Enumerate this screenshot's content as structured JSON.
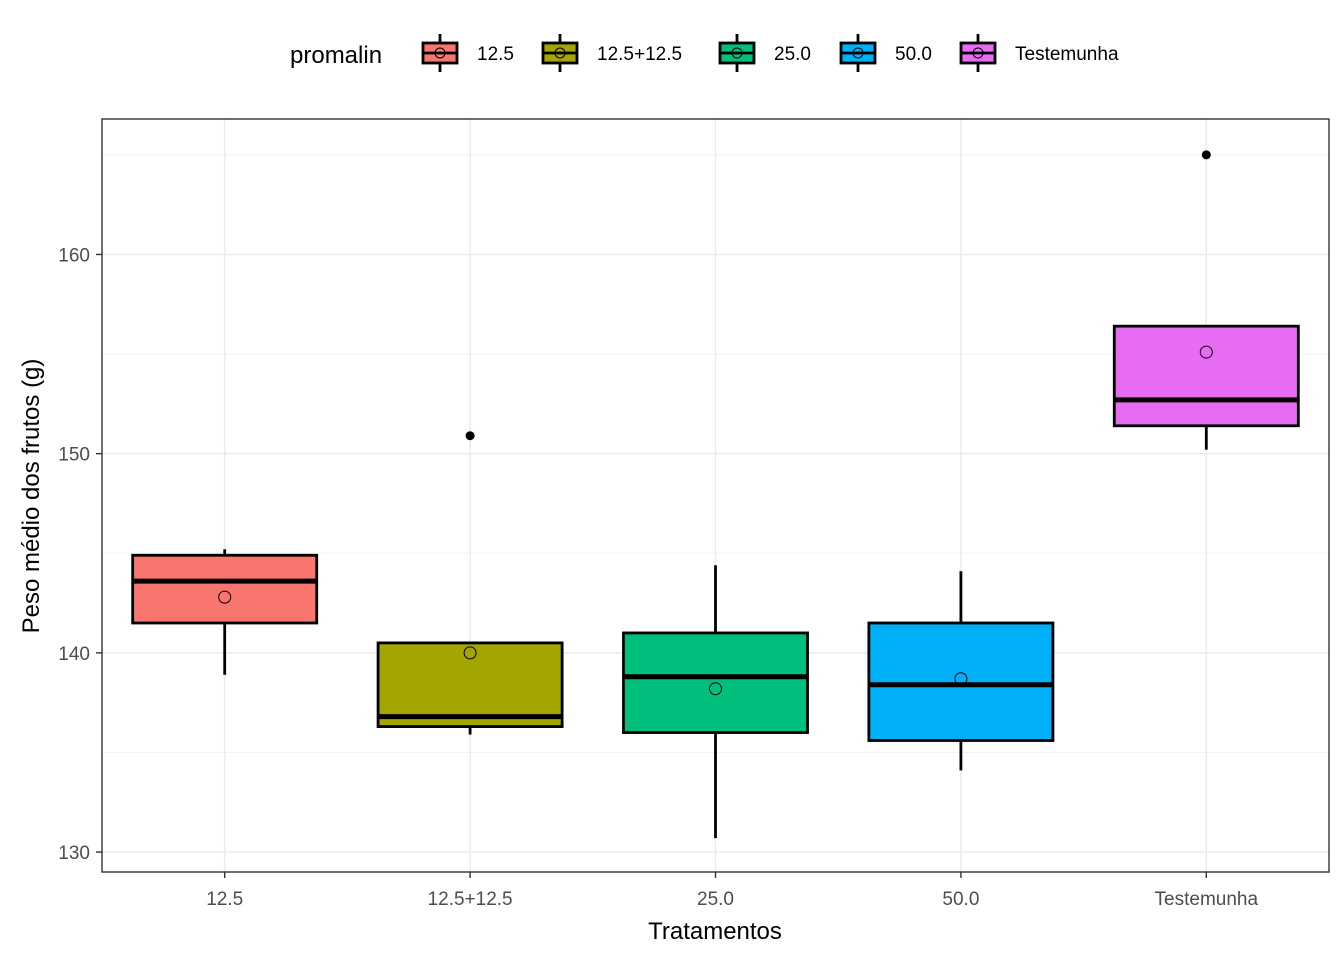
{
  "chart_data": {
    "type": "boxplot",
    "title": "",
    "xlabel": "Tratamentos",
    "ylabel": "Peso médio dos frutos (g)",
    "ylim": [
      129,
      166.8
    ],
    "y_ticks": [
      130,
      140,
      150,
      160
    ],
    "y_tick_labels": [
      "130",
      "140",
      "150",
      "160"
    ],
    "grid": true,
    "legend": {
      "title": "promalin",
      "position": "top"
    },
    "categories": [
      "12.5",
      "12.5+12.5",
      "25.0",
      "50.0",
      "Testemunha"
    ],
    "series": [
      {
        "name": "12.5",
        "color": "#F8766D",
        "whisker_low": 138.9,
        "q1": 141.5,
        "median": 143.6,
        "q3": 144.9,
        "whisker_high": 145.2,
        "mean": 142.8,
        "outliers": []
      },
      {
        "name": "12.5+12.5",
        "color": "#A3A500",
        "whisker_low": 135.9,
        "q1": 136.3,
        "median": 136.8,
        "q3": 140.5,
        "whisker_high": 140.5,
        "mean": 140.0,
        "outliers": [
          150.9
        ]
      },
      {
        "name": "25.0",
        "color": "#00BF7D",
        "whisker_low": 130.7,
        "q1": 136.0,
        "median": 138.8,
        "q3": 141.0,
        "whisker_high": 144.4,
        "mean": 138.2,
        "outliers": []
      },
      {
        "name": "50.0",
        "color": "#00B0F6",
        "whisker_low": 134.1,
        "q1": 135.6,
        "median": 138.4,
        "q3": 141.5,
        "whisker_high": 144.1,
        "mean": 138.7,
        "outliers": []
      },
      {
        "name": "Testemunha",
        "color": "#E76BF3",
        "whisker_low": 150.2,
        "q1": 151.4,
        "median": 152.7,
        "q3": 156.4,
        "whisker_high": 156.4,
        "mean": 155.1,
        "outliers": [
          165.0
        ]
      }
    ]
  }
}
